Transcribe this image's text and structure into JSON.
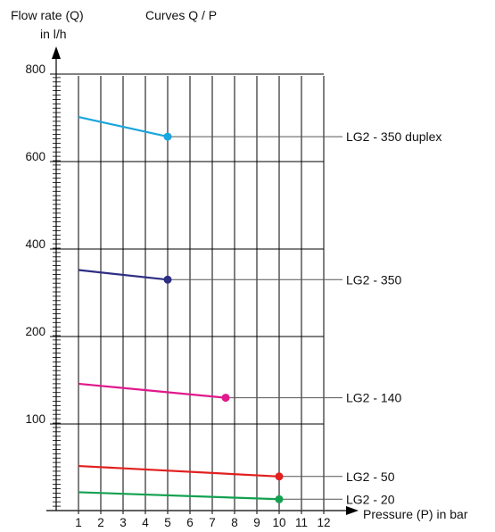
{
  "chart_data": {
    "type": "line",
    "title": "Curves Q / P",
    "ylabel_line1": "Flow rate (Q)",
    "ylabel_line2": "in l/h",
    "xlabel": "Pressure (P) in bar",
    "x_ticks": [
      "1",
      "2",
      "3",
      "4",
      "5",
      "6",
      "7",
      "8",
      "9",
      "10",
      "11",
      "12"
    ],
    "y_ticks": [
      "100",
      "200",
      "400",
      "600",
      "800"
    ],
    "y_scale": "piecewise: 0–100, 100–200 and 200–800 (steps of 200) each take one equal grid band",
    "grid": true,
    "series": [
      {
        "name": "LG2 - 350 duplex",
        "color": "#1aa6de",
        "x": [
          1,
          5
        ],
        "y": [
          702,
          657
        ]
      },
      {
        "name": "LG2 - 350",
        "color": "#2e2e84",
        "x": [
          1,
          5
        ],
        "y": [
          352,
          330
        ]
      },
      {
        "name": "LG2 - 140",
        "color": "#e0198c",
        "x": [
          1,
          7.6
        ],
        "y": [
          146,
          130
        ]
      },
      {
        "name": "LG2 - 50",
        "color": "#e1201f",
        "x": [
          1,
          10
        ],
        "y": [
          52,
          40
        ]
      },
      {
        "name": "LG2 - 20",
        "color": "#12a150",
        "x": [
          1,
          10
        ],
        "y": [
          22,
          14
        ]
      }
    ]
  }
}
